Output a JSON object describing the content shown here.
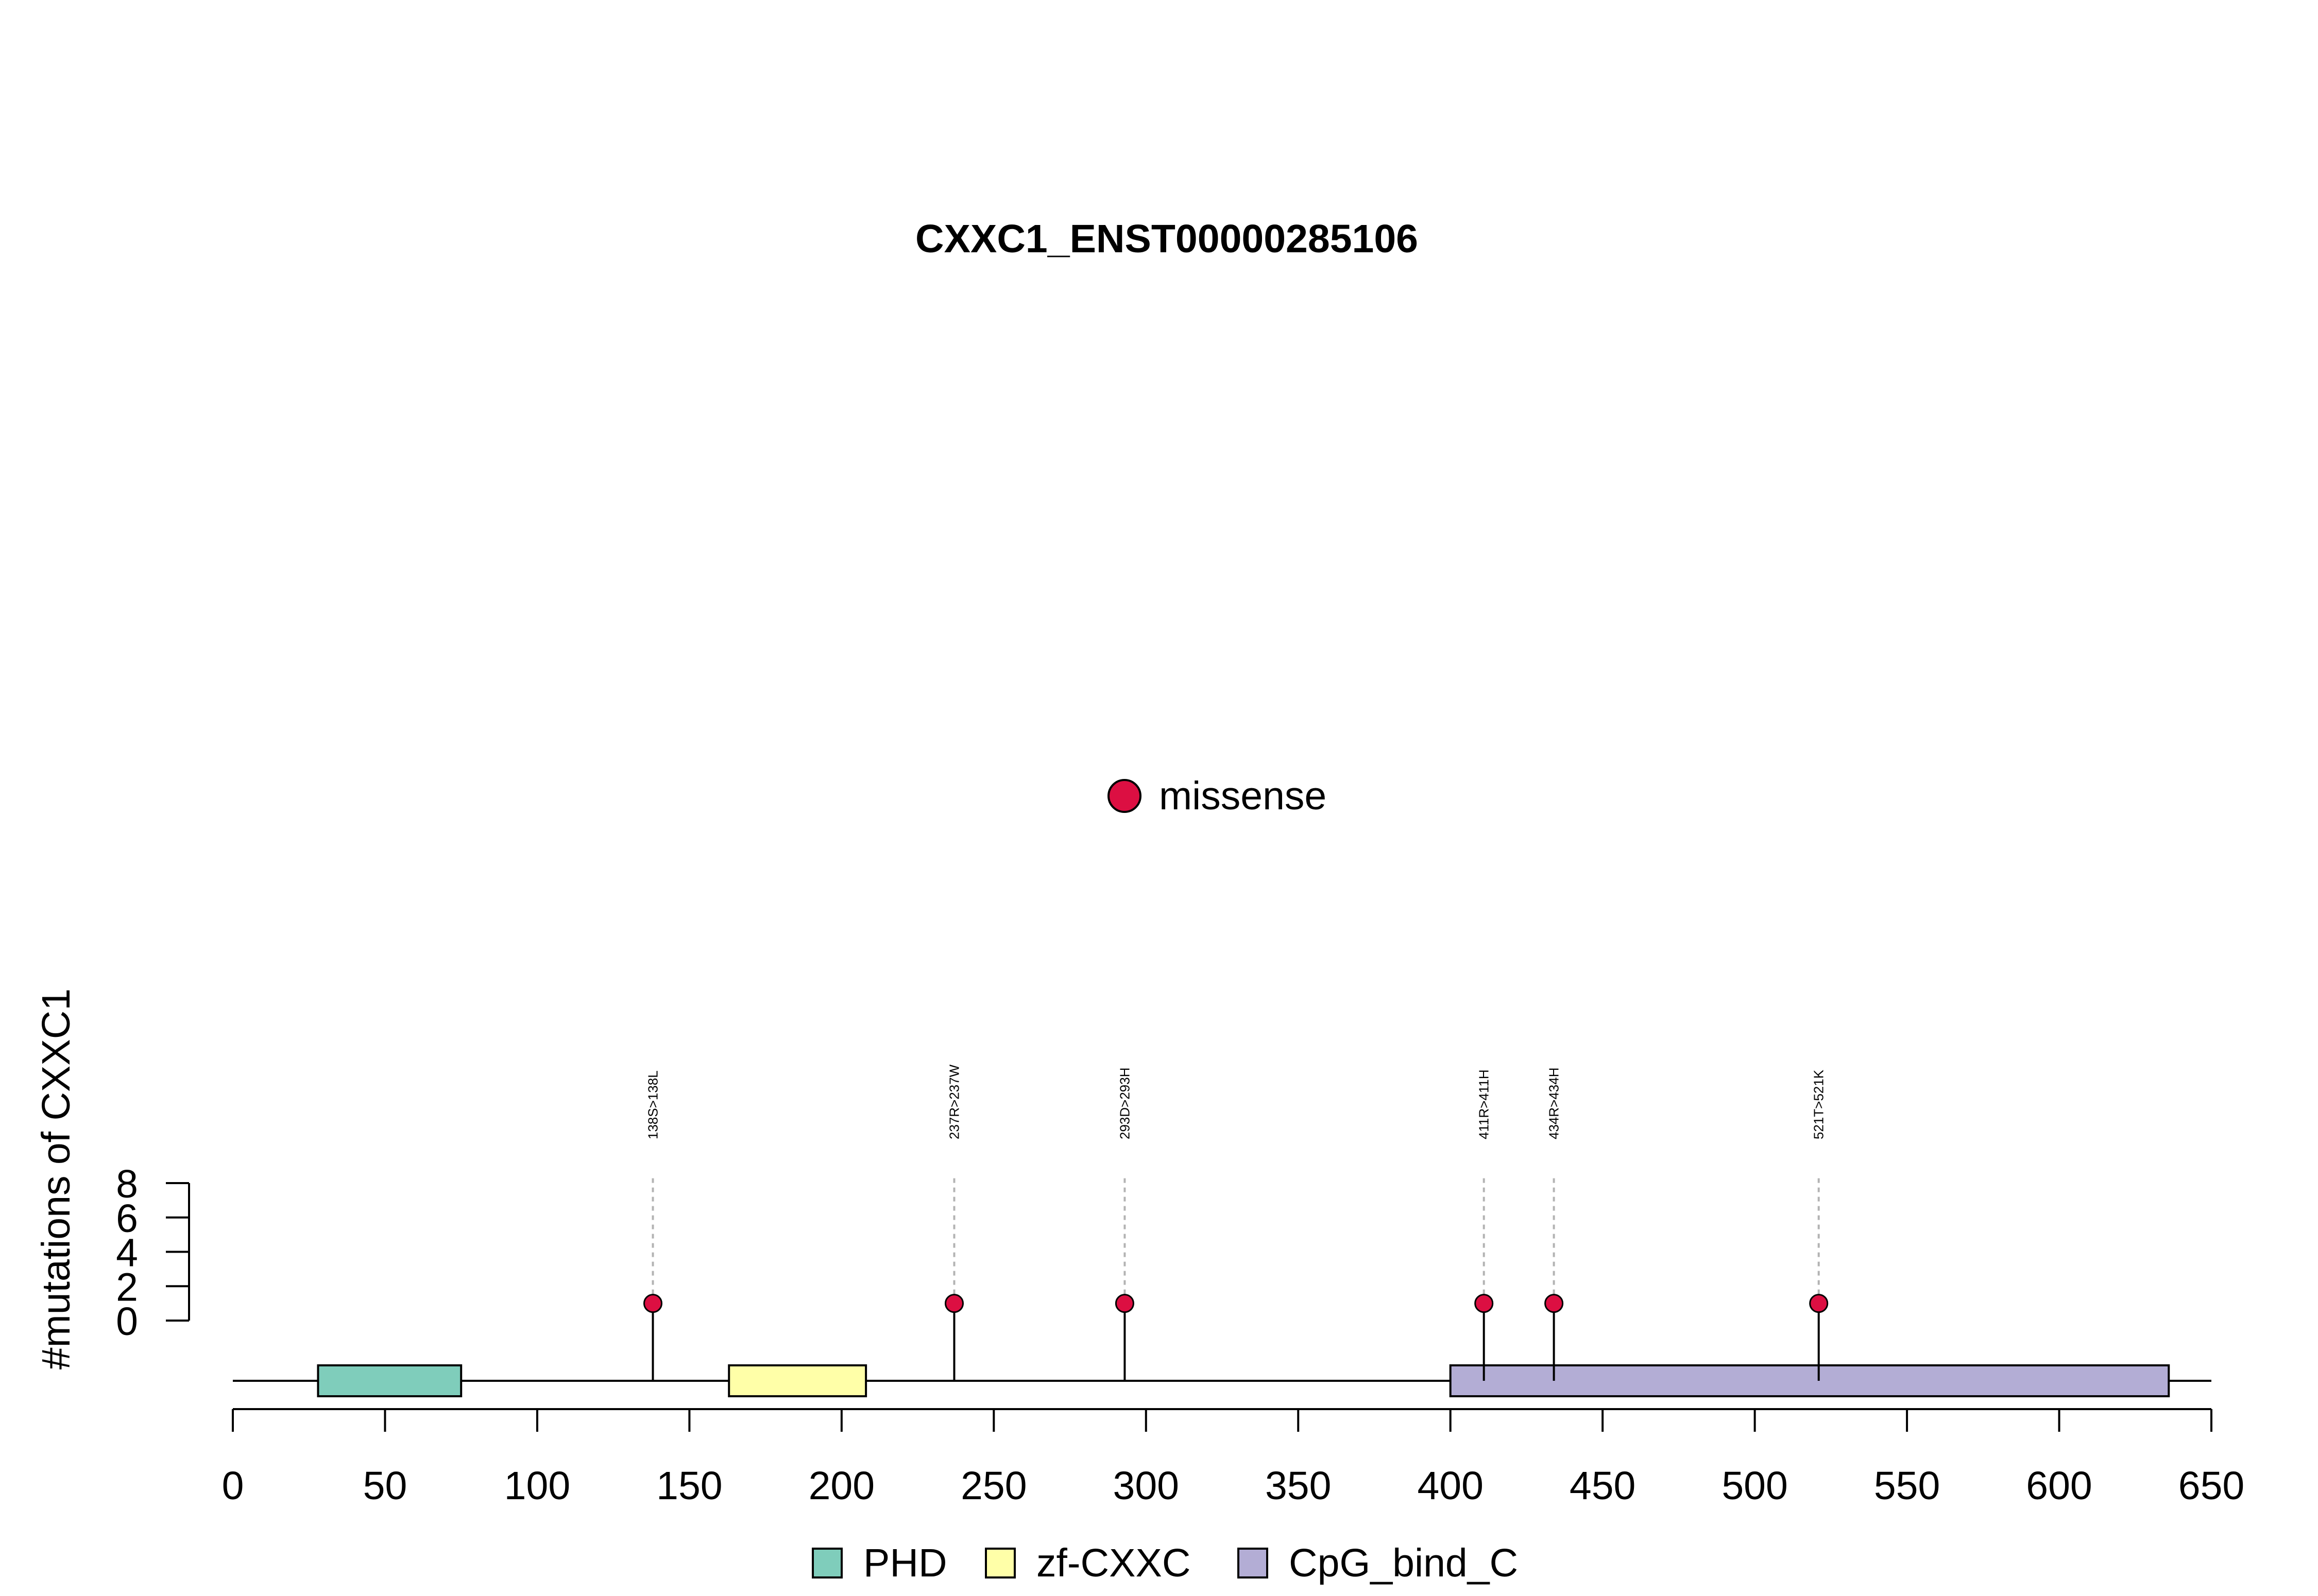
{
  "chart_data": {
    "type": "lollipop",
    "title": "CXXC1_ENST00000285106",
    "ylabel": "#mutations of CXXC1",
    "xlabel": "",
    "xlim": [
      0,
      650
    ],
    "x_ticks": [
      0,
      50,
      100,
      150,
      200,
      250,
      300,
      350,
      400,
      450,
      500,
      550,
      600,
      650
    ],
    "ylim": [
      0,
      8
    ],
    "y_ticks": [
      0,
      2,
      4,
      6,
      8
    ],
    "protein_length": 656,
    "mutation_legend": [
      {
        "label": "missense",
        "color": "#dc0f42"
      }
    ],
    "mutations": [
      {
        "position": 138,
        "count": 1,
        "label": "138S>138L",
        "type": "missense"
      },
      {
        "position": 237,
        "count": 1,
        "label": "237R>237W",
        "type": "missense"
      },
      {
        "position": 293,
        "count": 1,
        "label": "293D>293H",
        "type": "missense"
      },
      {
        "position": 411,
        "count": 1,
        "label": "411R>411H",
        "type": "missense"
      },
      {
        "position": 434,
        "count": 1,
        "label": "434R>434H",
        "type": "missense"
      },
      {
        "position": 521,
        "count": 1,
        "label": "521T>521K",
        "type": "missense"
      }
    ],
    "domains": [
      {
        "name": "PHD",
        "start": 28,
        "end": 75,
        "color": "#7fcdbb"
      },
      {
        "name": "zf-CXXC",
        "start": 163,
        "end": 208,
        "color": "#ffffa8"
      },
      {
        "name": "CpG_bind_C",
        "start": 400,
        "end": 636,
        "color": "#b3add5"
      }
    ],
    "domain_legend_placement": "bottom",
    "mutation_legend_placement": "top-center",
    "grid": false
  }
}
